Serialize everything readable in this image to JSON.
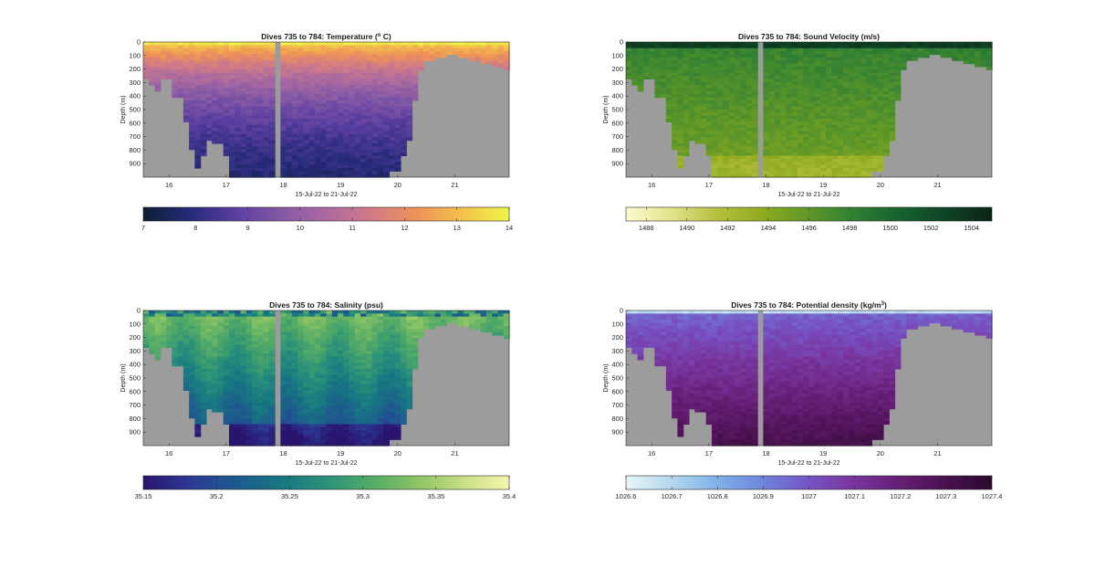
{
  "figure": {
    "panels": [
      "temperature",
      "sound_velocity",
      "salinity",
      "density"
    ]
  },
  "chart_data": [
    {
      "id": "temperature",
      "type": "heatmap",
      "title": "Dives 735 to 784: Temperature (",
      "title_sup": "o",
      "title_end": " C)",
      "xlabel": "15-Jul-22 to 21-Jul-22",
      "ylabel": "Depth (m)",
      "x_ticks": [
        "16",
        "17",
        "18",
        "19",
        "20",
        "21"
      ],
      "y_ticks": [
        "0",
        "100",
        "200",
        "300",
        "400",
        "500",
        "600",
        "700",
        "800",
        "900"
      ],
      "xlim": [
        15.55,
        21.95
      ],
      "ylim": [
        0,
        1000
      ],
      "colorbar": {
        "ticks": [
          "7",
          "8",
          "9",
          "10",
          "11",
          "12",
          "13",
          "14"
        ],
        "range": [
          7,
          14
        ],
        "colormap": [
          "#0b1f33",
          "#252a78",
          "#593ea0",
          "#8458a5",
          "#ab6aa0",
          "#d27b86",
          "#ee9356",
          "#f4c34a",
          "#eef54a"
        ]
      }
    },
    {
      "id": "sound_velocity",
      "type": "heatmap",
      "title": "Dives 735 to 784: Sound Velocity (m/s)",
      "title_sup": "",
      "title_end": "",
      "xlabel": "15-Jul-22 to 21-Jul-22",
      "ylabel": "Depth (m)",
      "x_ticks": [
        "16",
        "17",
        "18",
        "19",
        "20",
        "21"
      ],
      "y_ticks": [
        "0",
        "100",
        "200",
        "300",
        "400",
        "500",
        "600",
        "700",
        "800",
        "900"
      ],
      "xlim": [
        15.55,
        21.95
      ],
      "ylim": [
        0,
        1000
      ],
      "colorbar": {
        "ticks": [
          "1488",
          "1490",
          "1492",
          "1494",
          "1496",
          "1498",
          "1500",
          "1502",
          "1504"
        ],
        "range": [
          1487,
          1505
        ],
        "colormap": [
          "#fdfbcf",
          "#e3e28a",
          "#b6bf3e",
          "#8eab20",
          "#5e9728",
          "#2f7f34",
          "#16622f",
          "#0e4325",
          "#0b2416"
        ]
      }
    },
    {
      "id": "salinity",
      "type": "heatmap",
      "title": "Dives 735 to 784: Salinity (psu)",
      "title_sup": "",
      "title_end": "",
      "xlabel": "15-Jul-22 to 21-Jul-22",
      "ylabel": "Depth (m)",
      "x_ticks": [
        "16",
        "17",
        "18",
        "19",
        "20",
        "21"
      ],
      "y_ticks": [
        "0",
        "100",
        "200",
        "300",
        "400",
        "500",
        "600",
        "700",
        "800",
        "900"
      ],
      "xlim": [
        15.55,
        21.95
      ],
      "ylim": [
        0,
        1000
      ],
      "colorbar": {
        "ticks": [
          "35.15",
          "35.2",
          "35.25",
          "35.3",
          "35.35",
          "35.4"
        ],
        "range": [
          35.15,
          35.4
        ],
        "colormap": [
          "#29156e",
          "#2c3894",
          "#1d5a8e",
          "#177682",
          "#2a9179",
          "#53ab66",
          "#8cc464",
          "#c8df86",
          "#f7f5ad"
        ]
      }
    },
    {
      "id": "density",
      "type": "heatmap",
      "title": "Dives 735 to 784: Potential density (kg/m",
      "title_sup": "3",
      "title_end": ")",
      "xlabel": "15-Jul-22 to 21-Jul-22",
      "ylabel": "Depth (m)",
      "x_ticks": [
        "16",
        "17",
        "18",
        "19",
        "20",
        "21"
      ],
      "y_ticks": [
        "0",
        "100",
        "200",
        "300",
        "400",
        "500",
        "600",
        "700",
        "800",
        "900"
      ],
      "xlim": [
        15.55,
        21.95
      ],
      "ylim": [
        0,
        1000
      ],
      "colorbar": {
        "ticks": [
          "1026.6",
          "1026.7",
          "1026.8",
          "1026.9",
          "1027",
          "1027.1",
          "1027.2",
          "1027.3",
          "1027.4"
        ],
        "range": [
          1026.6,
          1027.4
        ],
        "colormap": [
          "#e8f6f8",
          "#b3d7ee",
          "#7fb1e8",
          "#6e84dc",
          "#7753c4",
          "#78349c",
          "#651e74",
          "#4a1150",
          "#2b0a2e"
        ]
      }
    }
  ]
}
